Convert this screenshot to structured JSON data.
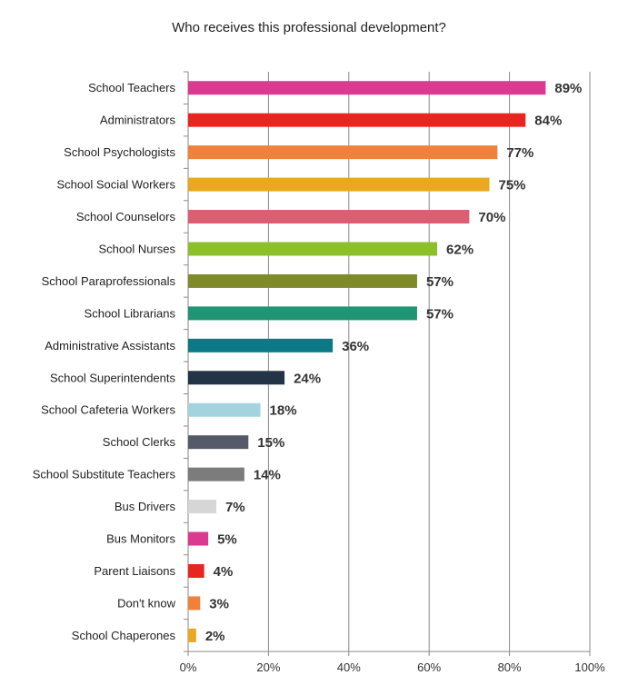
{
  "chart_data": {
    "type": "bar",
    "orientation": "horizontal",
    "title": "Who receives this professional development?",
    "xlabel": "",
    "ylabel": "",
    "xlim": [
      0,
      100
    ],
    "x_ticks": [
      "0%",
      "20%",
      "40%",
      "60%",
      "80%",
      "100%"
    ],
    "grid": "vertical",
    "categories": [
      "School Teachers",
      "Administrators",
      "School Psychologists",
      "School Social Workers",
      "School Counselors",
      "School Nurses",
      "School Paraprofessionals",
      "School Librarians",
      "Administrative Assistants",
      "School Superintendents",
      "School Cafeteria Workers",
      "School Clerks",
      "School Substitute Teachers",
      "Bus Drivers",
      "Bus Monitors",
      "Parent Liaisons",
      "Don't know",
      "School Chaperones"
    ],
    "values": [
      89,
      84,
      77,
      75,
      70,
      62,
      57,
      57,
      36,
      24,
      18,
      15,
      14,
      7,
      5,
      4,
      3,
      2
    ],
    "value_labels": [
      "89%",
      "84%",
      "77%",
      "75%",
      "70%",
      "62%",
      "57%",
      "57%",
      "36%",
      "24%",
      "18%",
      "15%",
      "14%",
      "7%",
      "5%",
      "4%",
      "3%",
      "2%"
    ],
    "colors": [
      "#da3a8f",
      "#e8261f",
      "#f1803a",
      "#eaa820",
      "#db5f73",
      "#8cc02a",
      "#7f8a2b",
      "#1f9573",
      "#0b7a86",
      "#223445",
      "#a3d4de",
      "#555a68",
      "#7c7c7c",
      "#d6d6d6",
      "#da3a8f",
      "#e8261f",
      "#f1803a",
      "#eaa820"
    ]
  }
}
